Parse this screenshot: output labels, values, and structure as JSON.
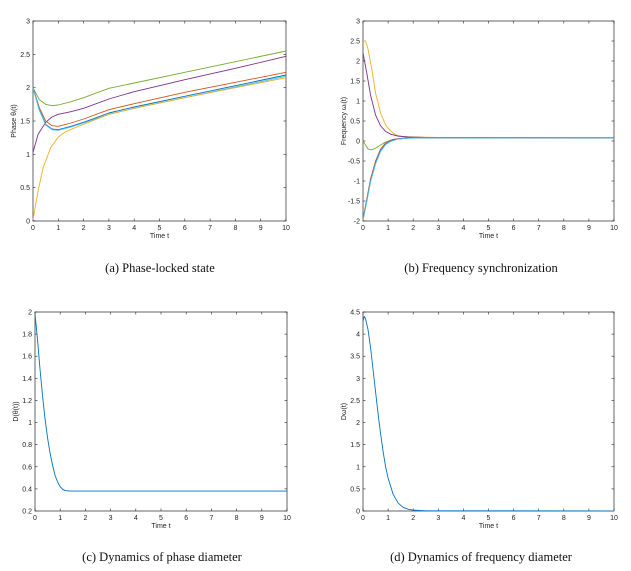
{
  "chart_data": [
    {
      "type": "line",
      "caption": "(a)  Phase-locked state",
      "xlabel": "Time t",
      "ylabel": "Phase θᵢ(t)",
      "xlim": [
        0,
        10
      ],
      "ylim": [
        0,
        3
      ],
      "xticks": [
        0,
        1,
        2,
        3,
        4,
        5,
        6,
        7,
        8,
        9,
        10
      ],
      "yticks": [
        0,
        0.5,
        1,
        1.5,
        2,
        2.5,
        3
      ],
      "ytick_labels": [
        "0",
        "0.5",
        "1",
        "1.5",
        "2",
        "2.5",
        "3"
      ],
      "series": [
        {
          "name": "green",
          "color": "#77ac30",
          "x": [
            0,
            0.25,
            0.5,
            0.75,
            1,
            1.5,
            2,
            3,
            4,
            6,
            8,
            10
          ],
          "y": [
            2.0,
            1.82,
            1.75,
            1.73,
            1.74,
            1.79,
            1.85,
            1.99,
            2.07,
            2.23,
            2.39,
            2.55
          ]
        },
        {
          "name": "purple",
          "color": "#7e2f8e",
          "x": [
            0,
            0.2,
            0.5,
            0.75,
            1,
            1.5,
            2,
            3,
            4,
            6,
            8,
            10
          ],
          "y": [
            1.03,
            1.3,
            1.48,
            1.56,
            1.6,
            1.64,
            1.69,
            1.83,
            1.94,
            2.12,
            2.29,
            2.47
          ]
        },
        {
          "name": "red",
          "color": "#d95319",
          "x": [
            0,
            0.25,
            0.5,
            0.75,
            1,
            1.5,
            2,
            3,
            4,
            6,
            8,
            10
          ],
          "y": [
            2.0,
            1.7,
            1.5,
            1.43,
            1.42,
            1.47,
            1.53,
            1.67,
            1.76,
            1.93,
            2.08,
            2.23
          ]
        },
        {
          "name": "blue",
          "color": "#0072bd",
          "x": [
            0,
            0.25,
            0.5,
            0.75,
            1,
            1.5,
            2,
            3,
            4,
            6,
            8,
            10
          ],
          "y": [
            2.0,
            1.67,
            1.45,
            1.38,
            1.37,
            1.42,
            1.48,
            1.62,
            1.71,
            1.87,
            2.03,
            2.19
          ]
        },
        {
          "name": "teal",
          "color": "#4dbeee",
          "x": [
            0,
            0.25,
            0.5,
            0.75,
            1,
            1.5,
            2,
            3,
            4,
            6,
            8,
            10
          ],
          "y": [
            2.0,
            1.66,
            1.44,
            1.37,
            1.36,
            1.41,
            1.47,
            1.6,
            1.69,
            1.85,
            2.01,
            2.17
          ]
        },
        {
          "name": "yellow",
          "color": "#edb120",
          "x": [
            0,
            0.2,
            0.4,
            0.7,
            1,
            1.3,
            1.6,
            2,
            3,
            4,
            6,
            8,
            10
          ],
          "y": [
            0.02,
            0.45,
            0.8,
            1.1,
            1.26,
            1.34,
            1.39,
            1.45,
            1.6,
            1.69,
            1.85,
            2.0,
            2.15
          ]
        }
      ]
    },
    {
      "type": "line",
      "caption": "(b)  Frequency synchronization",
      "xlabel": "Time t",
      "ylabel": "Frequency ωᵢ(t)",
      "xlim": [
        0,
        10
      ],
      "ylim": [
        -2,
        3
      ],
      "xticks": [
        0,
        1,
        2,
        3,
        4,
        5,
        6,
        7,
        8,
        9,
        10
      ],
      "yticks": [
        -2,
        -1.5,
        -1,
        -0.5,
        0,
        0.5,
        1,
        1.5,
        2,
        2.5,
        3
      ],
      "ytick_labels": [
        "-2",
        "-1.5",
        "-1",
        "-0.5",
        "0",
        "0.5",
        "1",
        "1.5",
        "2",
        "2.5",
        "3"
      ],
      "series": [
        {
          "name": "yellow",
          "color": "#edb120",
          "x": [
            0,
            0.1,
            0.2,
            0.35,
            0.5,
            0.7,
            0.9,
            1.1,
            1.3,
            1.6,
            2,
            3,
            10
          ],
          "y": [
            2.5,
            2.5,
            2.3,
            1.8,
            1.2,
            0.7,
            0.4,
            0.25,
            0.15,
            0.11,
            0.1,
            0.09,
            0.08
          ]
        },
        {
          "name": "purple",
          "color": "#7e2f8e",
          "x": [
            0,
            0.15,
            0.3,
            0.5,
            0.7,
            0.9,
            1.1,
            1.4,
            1.8,
            2.5,
            10
          ],
          "y": [
            2.2,
            1.7,
            1.15,
            0.65,
            0.38,
            0.24,
            0.17,
            0.12,
            0.1,
            0.09,
            0.08
          ]
        },
        {
          "name": "green",
          "color": "#77ac30",
          "x": [
            0,
            0.1,
            0.2,
            0.35,
            0.5,
            0.7,
            0.9,
            1.2,
            1.6,
            2.2,
            10
          ],
          "y": [
            0.0,
            -0.1,
            -0.2,
            -0.22,
            -0.18,
            -0.1,
            -0.03,
            0.04,
            0.07,
            0.08,
            0.08
          ]
        },
        {
          "name": "red",
          "color": "#d95319",
          "x": [
            0,
            0.15,
            0.3,
            0.5,
            0.7,
            0.9,
            1.1,
            1.4,
            1.8,
            2.5,
            10
          ],
          "y": [
            -1.95,
            -1.45,
            -0.95,
            -0.5,
            -0.2,
            -0.05,
            0.02,
            0.06,
            0.08,
            0.08,
            0.08
          ]
        },
        {
          "name": "blue",
          "color": "#0072bd",
          "x": [
            0,
            0.15,
            0.3,
            0.5,
            0.7,
            0.9,
            1.1,
            1.4,
            1.8,
            2.5,
            10
          ],
          "y": [
            -1.97,
            -1.5,
            -1.0,
            -0.55,
            -0.24,
            -0.08,
            0.0,
            0.05,
            0.07,
            0.08,
            0.08
          ]
        },
        {
          "name": "teal",
          "color": "#4dbeee",
          "x": [
            0,
            0.15,
            0.3,
            0.5,
            0.7,
            0.9,
            1.1,
            1.4,
            1.8,
            2.5,
            10
          ],
          "y": [
            -1.98,
            -1.52,
            -1.02,
            -0.57,
            -0.26,
            -0.09,
            -0.01,
            0.05,
            0.07,
            0.08,
            0.08
          ]
        }
      ]
    },
    {
      "type": "line",
      "caption": "(c)  Dynamics of phase diameter",
      "xlabel": "Time t",
      "ylabel": "D(θ(t))",
      "xlim": [
        0,
        10
      ],
      "ylim": [
        0.2,
        2
      ],
      "xticks": [
        0,
        1,
        2,
        3,
        4,
        5,
        6,
        7,
        8,
        9,
        10
      ],
      "yticks": [
        0.2,
        0.4,
        0.6,
        0.8,
        1,
        1.2,
        1.4,
        1.6,
        1.8,
        2
      ],
      "ytick_labels": [
        "0.2",
        "0.4",
        "0.6",
        "0.8",
        "1",
        "1.2",
        "1.4",
        "1.6",
        "1.8",
        "2"
      ],
      "series": [
        {
          "name": "diameter",
          "color": "#0072bd",
          "x": [
            0,
            0.1,
            0.2,
            0.3,
            0.4,
            0.5,
            0.6,
            0.7,
            0.8,
            0.9,
            1.0,
            1.1,
            1.2,
            1.4,
            1.6,
            2,
            4,
            10
          ],
          "y": [
            1.98,
            1.75,
            1.48,
            1.24,
            1.03,
            0.86,
            0.72,
            0.61,
            0.52,
            0.46,
            0.42,
            0.395,
            0.385,
            0.38,
            0.38,
            0.38,
            0.38,
            0.38
          ]
        }
      ]
    },
    {
      "type": "line",
      "caption": "(d)  Dynamics of frequency diameter",
      "xlabel": "Time t",
      "ylabel": "Dω(t)",
      "xlim": [
        0,
        10
      ],
      "ylim": [
        0,
        4.5
      ],
      "xticks": [
        0,
        1,
        2,
        3,
        4,
        5,
        6,
        7,
        8,
        9,
        10
      ],
      "yticks": [
        0,
        0.5,
        1,
        1.5,
        2,
        2.5,
        3,
        3.5,
        4,
        4.5
      ],
      "ytick_labels": [
        "0",
        "0.5",
        "1",
        "1.5",
        "2",
        "2.5",
        "3",
        "3.5",
        "4",
        "4.5"
      ],
      "series": [
        {
          "name": "diameter",
          "color": "#0072bd",
          "x": [
            0,
            0.05,
            0.1,
            0.2,
            0.3,
            0.4,
            0.5,
            0.6,
            0.7,
            0.8,
            0.9,
            1.0,
            1.2,
            1.4,
            1.6,
            1.8,
            2,
            2.5,
            10
          ],
          "y": [
            4.3,
            4.4,
            4.35,
            4.1,
            3.7,
            3.2,
            2.7,
            2.2,
            1.75,
            1.35,
            1.0,
            0.74,
            0.38,
            0.18,
            0.08,
            0.04,
            0.02,
            0.005,
            0.0
          ]
        }
      ]
    }
  ]
}
